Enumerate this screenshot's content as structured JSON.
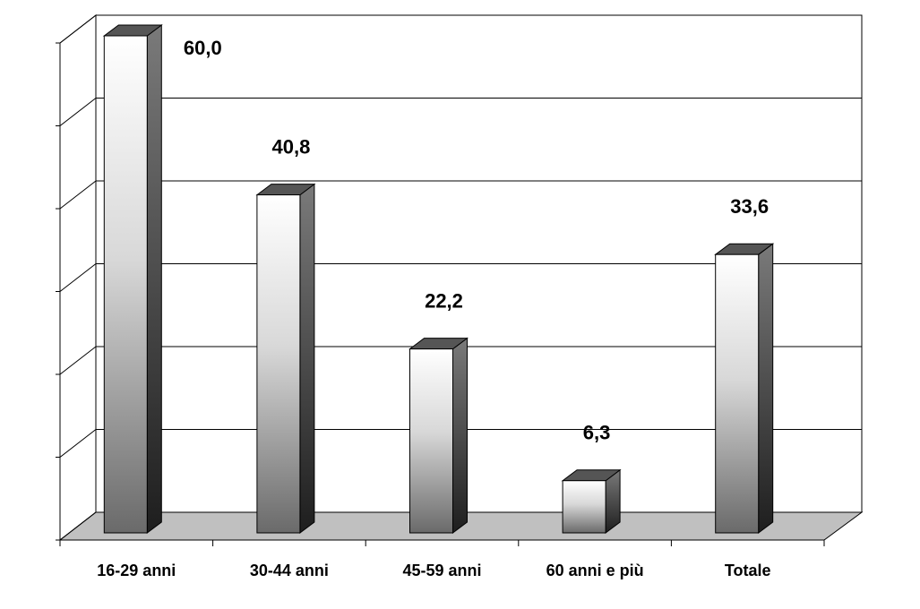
{
  "chart_data": {
    "type": "bar",
    "categories": [
      "16-29 anni",
      "30-44 anni",
      "45-59 anni",
      "60 anni e più",
      "Totale"
    ],
    "values": [
      60.0,
      40.8,
      22.2,
      6.3,
      33.6
    ],
    "value_labels": [
      "60,0",
      "40,8",
      "22,2",
      "6,3",
      "33,6"
    ],
    "ylim": [
      0,
      60
    ],
    "yticks": [
      0,
      10,
      20,
      30,
      40,
      50,
      60
    ],
    "grid": true
  }
}
